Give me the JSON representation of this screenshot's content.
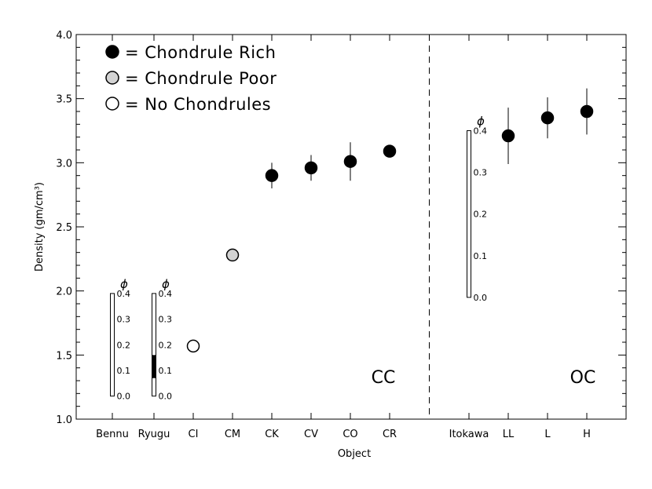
{
  "chart_data": {
    "type": "scatter",
    "xlabel": "Object",
    "ylabel": "Density (gm/cm³)",
    "ylim": [
      1.0,
      4.0
    ],
    "yticks": [
      "1.0",
      "1.5",
      "2.0",
      "2.5",
      "3.0",
      "3.5",
      "4.0"
    ],
    "categories": [
      "Bennu",
      "Ryugu",
      "CI",
      "CM",
      "CK",
      "CV",
      "CO",
      "CR",
      "Itokawa",
      "LL",
      "L",
      "H"
    ],
    "legend": [
      {
        "label": "= Chondrule Rich",
        "fill": "#000000"
      },
      {
        "label": "= Chondrule Poor",
        "fill": "#d3d3d3"
      },
      {
        "label": "= No Chondrules",
        "fill": "#ffffff"
      }
    ],
    "groups": [
      {
        "label": "CC",
        "categories": [
          "Bennu",
          "Ryugu",
          "CI",
          "CM",
          "CK",
          "CV",
          "CO",
          "CR"
        ]
      },
      {
        "label": "OC",
        "categories": [
          "Itokawa",
          "LL",
          "L",
          "H"
        ]
      }
    ],
    "points": [
      {
        "category": "CI",
        "y": 1.57,
        "err_low": null,
        "err_high": null,
        "class": "none"
      },
      {
        "category": "CM",
        "y": 2.28,
        "err_low": null,
        "err_high": null,
        "class": "poor"
      },
      {
        "category": "CK",
        "y": 2.9,
        "err_low": 2.8,
        "err_high": 3.0,
        "class": "rich"
      },
      {
        "category": "CV",
        "y": 2.96,
        "err_low": 2.86,
        "err_high": 3.06,
        "class": "rich"
      },
      {
        "category": "CO",
        "y": 3.01,
        "err_low": 2.86,
        "err_high": 3.16,
        "class": "rich"
      },
      {
        "category": "CR",
        "y": 3.09,
        "err_low": null,
        "err_high": null,
        "class": "rich"
      },
      {
        "category": "LL",
        "y": 3.21,
        "err_low": 2.99,
        "err_high": 3.43,
        "class": "rich"
      },
      {
        "category": "L",
        "y": 3.35,
        "err_low": 3.19,
        "err_high": 3.51,
        "class": "rich"
      },
      {
        "category": "H",
        "y": 3.4,
        "err_low": 3.22,
        "err_high": 3.58,
        "class": "rich"
      }
    ],
    "porosity_bars": [
      {
        "category": "Bennu",
        "y_bottom": 1.18,
        "y_top": 1.98,
        "filled": null,
        "ticks": [
          "0.0",
          "0.1",
          "0.2",
          "0.3",
          "0.4"
        ],
        "symbol": "ϕ"
      },
      {
        "category": "Ryugu",
        "y_bottom": 1.18,
        "y_top": 1.98,
        "filled": [
          0.07,
          0.16
        ],
        "ticks": [
          "0.0",
          "0.1",
          "0.2",
          "0.3",
          "0.4"
        ],
        "symbol": "ϕ"
      },
      {
        "category": "Itokawa",
        "y_bottom": 1.95,
        "y_top": 3.25,
        "filled": null,
        "ticks": [
          "0.0",
          "0.1",
          "0.2",
          "0.3",
          "0.4"
        ],
        "symbol": "ϕ"
      }
    ],
    "grid": false,
    "divider_between": [
      "CR",
      "Itokawa"
    ]
  }
}
